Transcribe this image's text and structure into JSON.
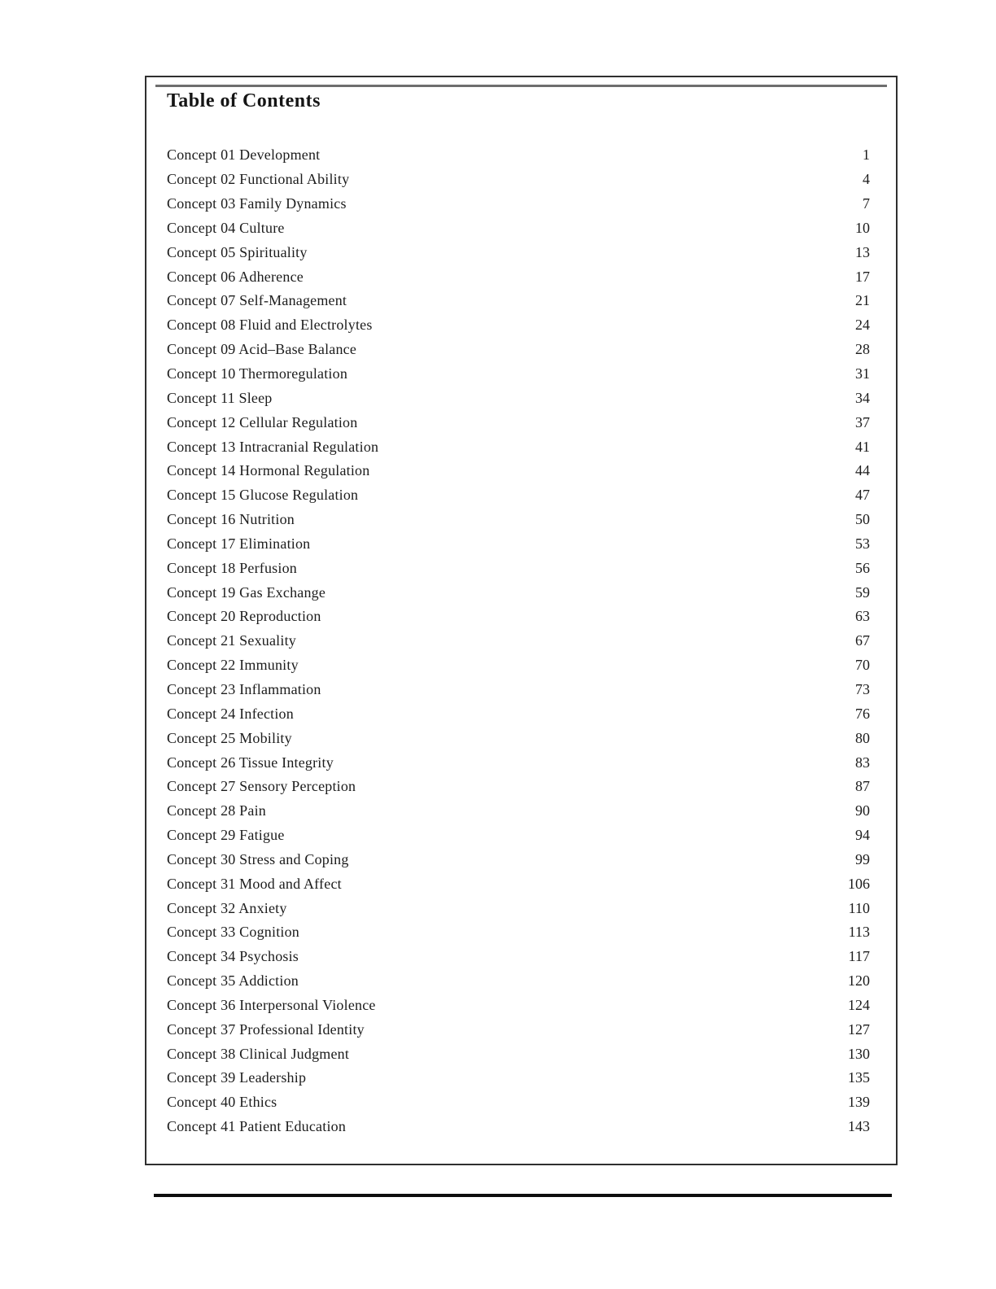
{
  "toc": {
    "title": "Table of Contents",
    "entries": [
      {
        "label": "Concept 01 Development",
        "page": "1"
      },
      {
        "label": "Concept 02 Functional Ability",
        "page": "4"
      },
      {
        "label": "Concept 03 Family Dynamics",
        "page": "7"
      },
      {
        "label": "Concept 04 Culture",
        "page": "10"
      },
      {
        "label": "Concept 05 Spirituality",
        "page": "13"
      },
      {
        "label": "Concept 06 Adherence",
        "page": "17"
      },
      {
        "label": "Concept 07 Self-Management",
        "page": "21"
      },
      {
        "label": "Concept 08 Fluid and Electrolytes",
        "page": "24"
      },
      {
        "label": "Concept 09 Acid–Base Balance",
        "page": "28"
      },
      {
        "label": "Concept 10 Thermoregulation",
        "page": "31"
      },
      {
        "label": "Concept 11 Sleep",
        "page": "34"
      },
      {
        "label": "Concept 12 Cellular Regulation",
        "page": "37"
      },
      {
        "label": "Concept 13 Intracranial Regulation",
        "page": "41"
      },
      {
        "label": "Concept 14 Hormonal Regulation",
        "page": "44"
      },
      {
        "label": "Concept 15 Glucose Regulation",
        "page": "47"
      },
      {
        "label": "Concept 16 Nutrition",
        "page": "50"
      },
      {
        "label": "Concept 17 Elimination",
        "page": "53"
      },
      {
        "label": "Concept 18 Perfusion",
        "page": "56"
      },
      {
        "label": "Concept 19 Gas Exchange",
        "page": "59"
      },
      {
        "label": "Concept 20 Reproduction",
        "page": "63"
      },
      {
        "label": "Concept 21 Sexuality",
        "page": "67"
      },
      {
        "label": "Concept 22 Immunity",
        "page": "70"
      },
      {
        "label": "Concept 23 Inflammation",
        "page": "73"
      },
      {
        "label": "Concept 24 Infection",
        "page": "76"
      },
      {
        "label": "Concept 25 Mobility",
        "page": "80"
      },
      {
        "label": "Concept 26 Tissue Integrity",
        "page": "83"
      },
      {
        "label": "Concept 27 Sensory Perception",
        "page": "87"
      },
      {
        "label": "Concept 28 Pain",
        "page": "90"
      },
      {
        "label": "Concept 29 Fatigue",
        "page": "94"
      },
      {
        "label": "Concept 30 Stress and Coping",
        "page": "99"
      },
      {
        "label": "Concept 31 Mood and Affect",
        "page": "106"
      },
      {
        "label": "Concept 32 Anxiety",
        "page": "110"
      },
      {
        "label": "Concept 33 Cognition",
        "page": "113"
      },
      {
        "label": "Concept 34 Psychosis",
        "page": "117"
      },
      {
        "label": "Concept 35 Addiction",
        "page": "120"
      },
      {
        "label": "Concept 36 Interpersonal Violence",
        "page": "124"
      },
      {
        "label": "Concept 37 Professional Identity",
        "page": "127"
      },
      {
        "label": "Concept 38 Clinical Judgment",
        "page": "130"
      },
      {
        "label": "Concept 39 Leadership",
        "page": "135"
      },
      {
        "label": "Concept 40 Ethics",
        "page": "139"
      },
      {
        "label": "Concept 41 Patient Education",
        "page": "143"
      }
    ]
  },
  "decorations": {
    "title_rule_color": "#6e6e6e",
    "box_border_color": "#2f2f2f",
    "bottom_rule_color": "#0d0d0d"
  }
}
